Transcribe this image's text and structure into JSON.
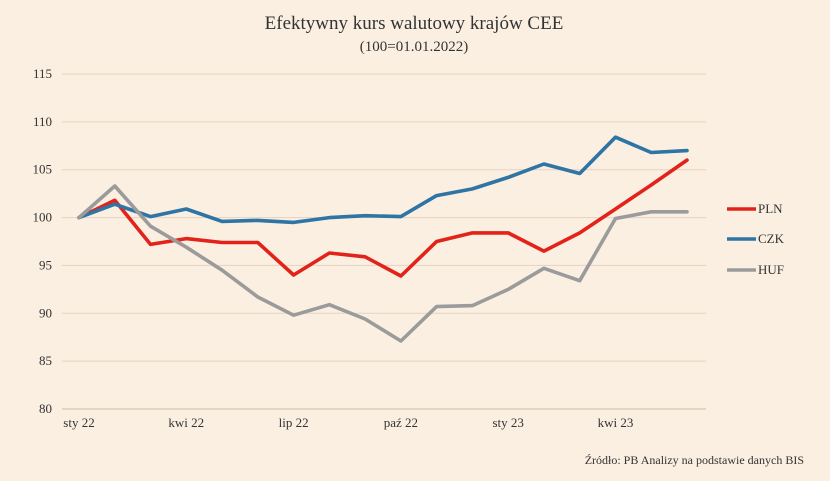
{
  "chart_data": {
    "type": "line",
    "title": "Efektywny kurs walutowy krajów CEE",
    "subtitle": "(100=01.01.2022)",
    "ylim": [
      80,
      115
    ],
    "yticks": [
      80,
      85,
      90,
      95,
      100,
      105,
      110,
      115
    ],
    "x_tick_labels": [
      {
        "index": 0,
        "label": "sty 22"
      },
      {
        "index": 3,
        "label": "kwi 22"
      },
      {
        "index": 6,
        "label": "lip 22"
      },
      {
        "index": 9,
        "label": "paź 22"
      },
      {
        "index": 12,
        "label": "sty 23"
      },
      {
        "index": 15,
        "label": "kwi 23"
      }
    ],
    "x": [
      "2022-01",
      "2022-02",
      "2022-03",
      "2022-04",
      "2022-05",
      "2022-06",
      "2022-07",
      "2022-08",
      "2022-09",
      "2022-10",
      "2022-11",
      "2022-12",
      "2023-01",
      "2023-02",
      "2023-03",
      "2023-04",
      "2023-05",
      "2023-06"
    ],
    "series": [
      {
        "name": "PLN",
        "color": "#e2231a",
        "values": [
          100,
          101.8,
          97.2,
          97.8,
          97.4,
          97.4,
          94.0,
          96.3,
          95.9,
          93.9,
          97.5,
          98.4,
          98.4,
          96.5,
          98.4,
          100.9,
          103.4,
          106.0
        ]
      },
      {
        "name": "CZK",
        "color": "#2e74a4",
        "values": [
          100,
          101.4,
          100.1,
          100.9,
          99.6,
          99.7,
          99.5,
          100.0,
          100.2,
          100.1,
          102.3,
          103.0,
          104.2,
          105.6,
          104.6,
          108.4,
          106.8,
          107.0
        ]
      },
      {
        "name": "HUF",
        "color": "#9b9b9b",
        "values": [
          100,
          103.3,
          99.1,
          96.9,
          94.5,
          91.7,
          89.8,
          90.9,
          89.4,
          87.1,
          90.7,
          90.8,
          92.5,
          94.7,
          93.4,
          99.9,
          100.6,
          100.6
        ]
      }
    ],
    "grid": true,
    "legend_position": "right"
  },
  "source": "Źródło: PB Analizy na podstawie danych BIS"
}
